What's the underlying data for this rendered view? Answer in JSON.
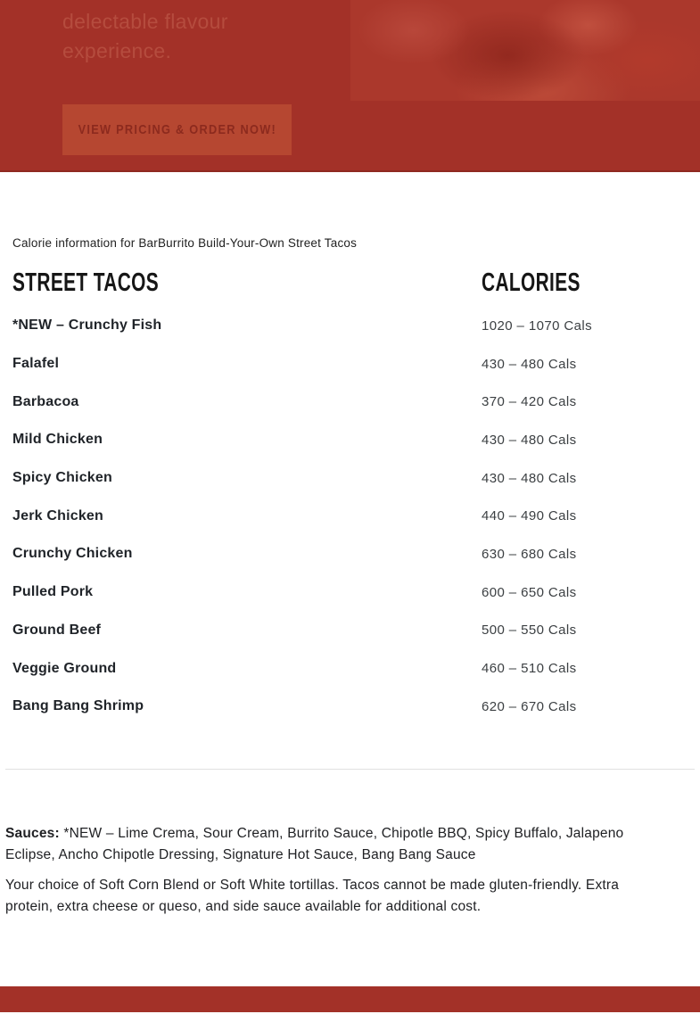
{
  "hero": {
    "tagline_line1": "delectable flavour",
    "tagline_line2": "experience.",
    "cta_label": "VIEW PRICING & ORDER NOW!"
  },
  "intro": {
    "note": "Calorie information for BarBurrito Build-Your-Own Street Tacos"
  },
  "menu": {
    "col_item_header": "STREET TACOS",
    "col_cal_header": "CALORIES",
    "items": [
      {
        "name": "*NEW – Crunchy Fish",
        "cals": "1020 – 1070 Cals"
      },
      {
        "name": "Falafel",
        "cals": "430 – 480 Cals"
      },
      {
        "name": "Barbacoa",
        "cals": "370 – 420 Cals"
      },
      {
        "name": "Mild Chicken",
        "cals": "430 – 480 Cals"
      },
      {
        "name": "Spicy Chicken",
        "cals": "430 – 480 Cals"
      },
      {
        "name": "Jerk Chicken",
        "cals": "440 – 490 Cals"
      },
      {
        "name": "Crunchy Chicken",
        "cals": "630 – 680 Cals"
      },
      {
        "name": "Pulled Pork",
        "cals": "600 – 650 Cals"
      },
      {
        "name": "Ground Beef",
        "cals": "500 – 550 Cals"
      },
      {
        "name": "Veggie Ground",
        "cals": "460 – 510 Cals"
      },
      {
        "name": "Bang Bang Shrimp",
        "cals": "620 – 670 Cals"
      }
    ]
  },
  "notes": {
    "sauces_label": "Sauces:",
    "sauces_text": "*NEW – Lime Crema, Sour Cream, Burrito Sauce, Chipotle BBQ, Spicy Buffalo, Jalapeno Eclipse, Ancho Chipotle Dressing, Signature Hot Sauce, Bang Bang Sauce",
    "tortilla_text": "Your choice of Soft Corn Blend or Soft White tortillas. Tacos cannot be made gluten-friendly. Extra protein, extra cheese or queso, and side sauce available for additional cost."
  },
  "colors": {
    "hero_bg": "#a33128",
    "hero_border": "#8f2a21",
    "button_bg": "#b64731",
    "button_text": "#8c2a1e",
    "tagline_text": "#b54c3e",
    "footer_bg": "#a33128",
    "heading_text": "#161616",
    "item_text": "#1f2328",
    "cals_text": "#3c4043",
    "divider": "#e0e0e0"
  }
}
